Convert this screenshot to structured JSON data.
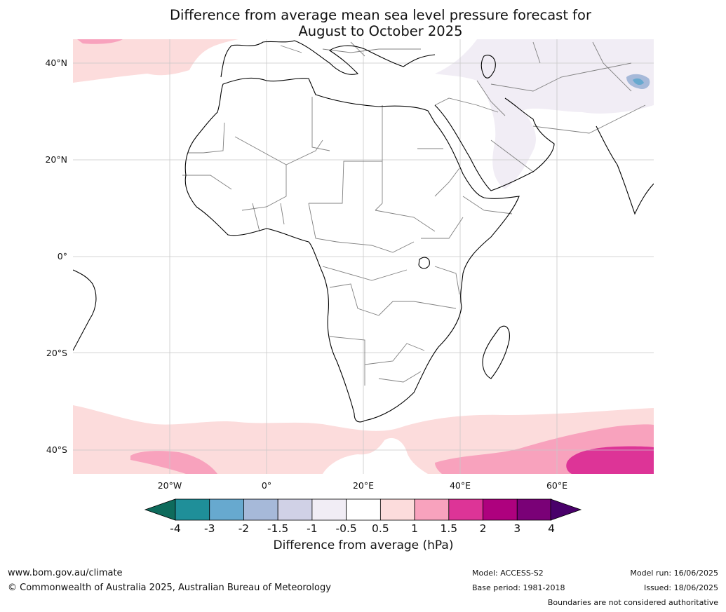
{
  "title": {
    "line1": "Difference from average mean sea level pressure forecast for",
    "line2": "August to October 2025"
  },
  "map": {
    "lat_labels": [
      "40°N",
      "20°N",
      "0°",
      "20°S",
      "40°S"
    ],
    "lon_labels": [
      "20°W",
      "0°",
      "20°E",
      "40°E",
      "60°E"
    ],
    "colors": {
      "ocean_land": "#ffffff",
      "coast": "#000000",
      "borders": "#808080",
      "gridlines": "#c8c8c8"
    }
  },
  "colorbar": {
    "ticks": [
      "-4",
      "-3",
      "-2",
      "-1.5",
      "-1",
      "-0.5",
      "0.5",
      "1",
      "1.5",
      "2",
      "3",
      "4"
    ],
    "colors": [
      "#0e6b5c",
      "#1f8f99",
      "#67a9cf",
      "#a6b9d9",
      "#d0d1e6",
      "#f1edf5",
      "#ffffff",
      "#fcdcdc",
      "#f8a2bd",
      "#dd3497",
      "#ae017e",
      "#7a0177",
      "#49006a"
    ],
    "label": "Difference from average (hPa)"
  },
  "footer": {
    "website": "www.bom.gov.au/climate",
    "copyright": "© Commonwealth of Australia 2025, Australian Bureau of Meteorology",
    "model": "Model: ACCESS-S2",
    "base_period": "Base period: 1981-2018",
    "model_run": "Model run: 16/06/2025",
    "issued": "Issued: 18/06/2025",
    "disclaimer": "Boundaries are not considered authoritative"
  }
}
